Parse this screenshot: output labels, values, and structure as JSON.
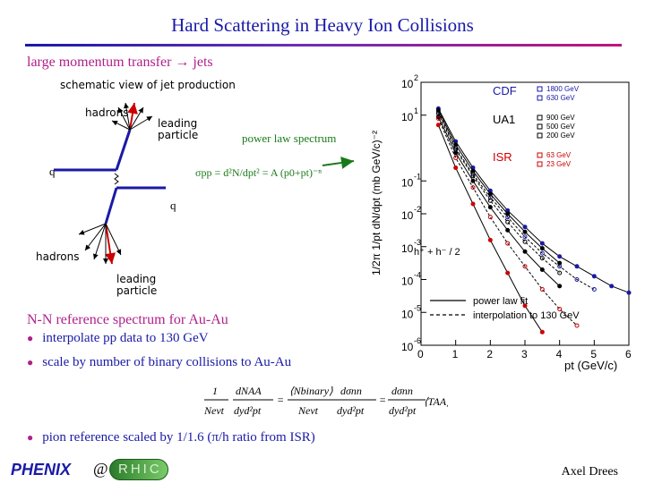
{
  "slide": {
    "title": "Hard Scattering in Heavy Ion Collisions",
    "subtitle": "large momentum transfer → jets",
    "schematic_caption": "schematic view of jet production",
    "labels": {
      "hadrons_top": "hadrons",
      "leading_top": "leading",
      "particle_top": "particle",
      "power_law": "power law spectrum",
      "q_left": "q",
      "q_right": "q",
      "formula": "σpp = d²N/dpt² = A (p0+pt)⁻ⁿ",
      "hadrons_bottom": "hadrons",
      "leading_bottom": "leading",
      "particle_bottom": "particle"
    },
    "section_heading": "N-N reference spectrum for Au-Au",
    "bullets": [
      "interpolate pp data to 130 GeV",
      "scale by number of binary collisions to Au-Au",
      "pion reference scaled by 1/1.6  (π/h ratio from ISR)"
    ],
    "equation": {
      "lhs_num": "1",
      "lhs_den": "Nevt",
      "lhs_frac_num": "dNAA",
      "lhs_frac_den": "dyd²pt",
      "mid_num": "⟨Nbinary⟩",
      "mid_den": "Nevt",
      "mid2_num": "dσnn",
      "mid2_den": "dyd²pt",
      "rhs_num": "dσnn",
      "rhs_den": "dyd²pt",
      "rhs_factor": "⟨TAA⟩"
    },
    "footer": {
      "author": "Axel Drees",
      "logo_left": "PHENIX",
      "at": "@",
      "logo_right": "RHIC"
    }
  },
  "chart_data": {
    "type": "scatter",
    "xlabel": "pt (GeV/c)",
    "ylabel": "1/2π 1/pt dN/dpt (mb GeV/c)⁻²",
    "xlim": [
      0,
      6
    ],
    "ylim_log10": [
      -6,
      2
    ],
    "x_ticks": [
      "0",
      "1",
      "2",
      "3",
      "4",
      "5",
      "6"
    ],
    "y_ticks": [
      "2",
      "1",
      "-1",
      "-2",
      "-3",
      "-4",
      "-5",
      "-6"
    ],
    "legend_groups": [
      {
        "name": "CDF",
        "entries": [
          "1800 GeV",
          "630 GeV"
        ]
      },
      {
        "name": "UA1",
        "entries": [
          "900 GeV",
          "500 GeV",
          "200 GeV"
        ]
      },
      {
        "name": "ISR",
        "entries": [
          "63 GeV",
          "23 GeV"
        ]
      }
    ],
    "annotation": "h⁺ + h⁻ / 2",
    "line_legend": [
      "power law fit",
      "interpolation to 130 GeV"
    ],
    "series": [
      {
        "name": "1800 GeV",
        "values": [
          [
            0.5,
            1.2
          ],
          [
            1,
            0.2
          ],
          [
            1.5,
            -0.6
          ],
          [
            2,
            -1.3
          ],
          [
            2.5,
            -1.9
          ],
          [
            3,
            -2.4
          ],
          [
            3.5,
            -2.9
          ],
          [
            4,
            -3.3
          ],
          [
            4.5,
            -3.6
          ],
          [
            5,
            -3.9
          ],
          [
            5.5,
            -4.2
          ],
          [
            6,
            -4.4
          ]
        ]
      },
      {
        "name": "630 GeV",
        "values": [
          [
            0.5,
            1.1
          ],
          [
            1,
            0.0
          ],
          [
            1.5,
            -0.8
          ],
          [
            2,
            -1.5
          ],
          [
            2.5,
            -2.1
          ],
          [
            3,
            -2.7
          ],
          [
            3.5,
            -3.2
          ],
          [
            4,
            -3.6
          ],
          [
            4.5,
            -4.0
          ],
          [
            5,
            -4.3
          ]
        ]
      },
      {
        "name": "900 GeV",
        "values": [
          [
            0.5,
            1.15
          ],
          [
            1,
            0.1
          ],
          [
            1.5,
            -0.7
          ],
          [
            2,
            -1.4
          ],
          [
            2.5,
            -2.0
          ],
          [
            3,
            -2.55
          ],
          [
            3.5,
            -3.05
          ],
          [
            4,
            -3.5
          ]
        ]
      },
      {
        "name": "500 GeV",
        "values": [
          [
            0.5,
            1.05
          ],
          [
            1,
            -0.05
          ],
          [
            1.5,
            -0.85
          ],
          [
            2,
            -1.6
          ],
          [
            2.5,
            -2.25
          ],
          [
            3,
            -2.85
          ],
          [
            3.5,
            -3.35
          ],
          [
            4,
            -3.8
          ]
        ]
      },
      {
        "name": "200 GeV",
        "values": [
          [
            0.5,
            0.95
          ],
          [
            1,
            -0.15
          ],
          [
            1.5,
            -1.0
          ],
          [
            2,
            -1.8
          ],
          [
            2.5,
            -2.5
          ],
          [
            3,
            -3.15
          ],
          [
            3.5,
            -3.7
          ],
          [
            4,
            -4.2
          ]
        ]
      },
      {
        "name": "63 GeV",
        "values": [
          [
            0.5,
            0.9
          ],
          [
            1,
            -0.3
          ],
          [
            1.5,
            -1.2
          ],
          [
            2,
            -2.1
          ],
          [
            2.5,
            -2.9
          ],
          [
            3,
            -3.6
          ],
          [
            3.5,
            -4.3
          ],
          [
            4,
            -4.9
          ],
          [
            4.5,
            -5.4
          ]
        ]
      },
      {
        "name": "23 GeV",
        "values": [
          [
            0.5,
            0.7
          ],
          [
            1,
            -0.6
          ],
          [
            1.5,
            -1.7
          ],
          [
            2,
            -2.8
          ],
          [
            2.5,
            -3.8
          ],
          [
            3,
            -4.8
          ],
          [
            3.5,
            -5.6
          ]
        ]
      }
    ],
    "colors": {
      "cdf": "#1a1aa6",
      "ua1": "#000000",
      "isr": "#cc0000",
      "arrow": "#1a7a1a"
    }
  }
}
